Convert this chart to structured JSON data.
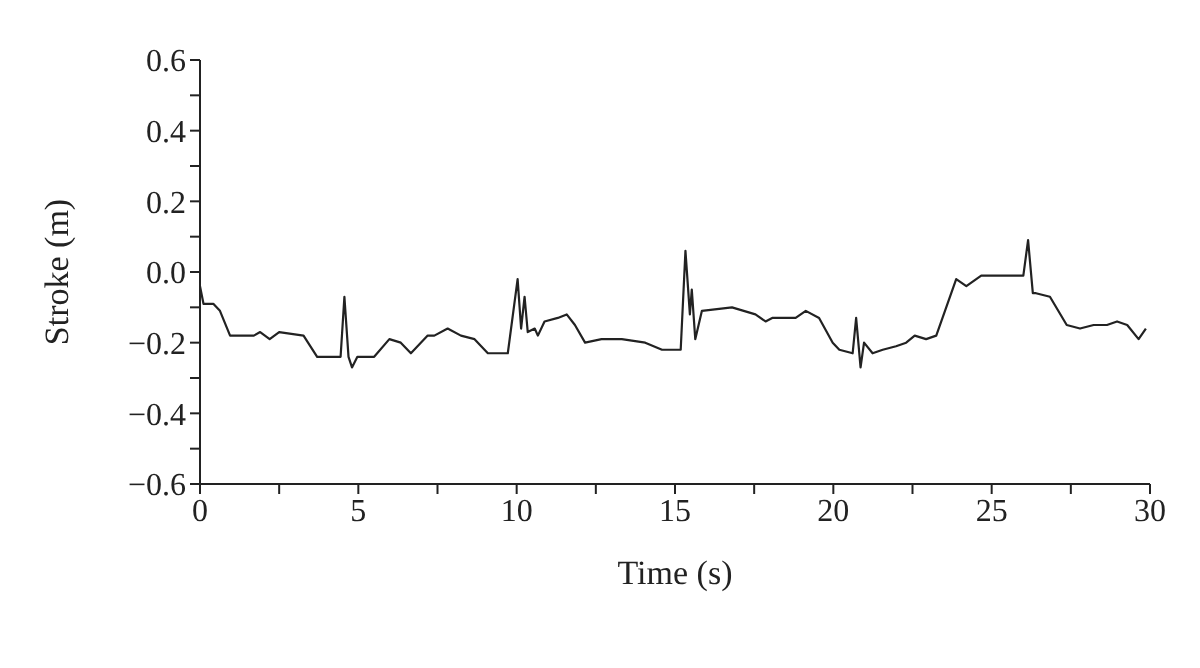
{
  "chart_data": {
    "type": "line",
    "xlabel": "Time (s)",
    "ylabel": "Stroke (m)",
    "x": [
      0,
      0.11,
      0.42,
      0.63,
      0.95,
      1.7,
      1.9,
      2.2,
      2.5,
      3.27,
      3.7,
      4.44,
      4.56,
      4.69,
      4.8,
      4.97,
      5.5,
      5.98,
      6.34,
      6.66,
      7.19,
      7.4,
      7.82,
      8.24,
      8.67,
      9.09,
      9.72,
      10.03,
      10.14,
      10.25,
      10.35,
      10.57,
      10.67,
      10.88,
      11.3,
      11.58,
      11.84,
      12.16,
      12.68,
      13.32,
      14.06,
      14.59,
      15.18,
      15.33,
      15.47,
      15.53,
      15.64,
      15.85,
      16.8,
      17.54,
      17.86,
      18.07,
      18.81,
      19.13,
      19.55,
      19.98,
      20.19,
      20.61,
      20.72,
      20.86,
      20.97,
      21.24,
      21.56,
      21.98,
      22.3,
      22.57,
      22.93,
      23.25,
      23.88,
      24.2,
      24.67,
      25.15,
      26.0,
      26.15,
      26.3,
      26.4,
      26.84,
      27.37,
      27.79,
      28.22,
      28.64,
      28.96,
      29.28,
      29.64,
      29.87
    ],
    "series": [
      {
        "color": "#222222",
        "values": [
          -0.04,
          -0.09,
          -0.09,
          -0.11,
          -0.18,
          -0.18,
          -0.17,
          -0.19,
          -0.17,
          -0.18,
          -0.24,
          -0.24,
          -0.07,
          -0.24,
          -0.27,
          -0.24,
          -0.24,
          -0.19,
          -0.2,
          -0.23,
          -0.18,
          -0.18,
          -0.16,
          -0.18,
          -0.19,
          -0.23,
          -0.23,
          -0.02,
          -0.16,
          -0.07,
          -0.17,
          -0.16,
          -0.18,
          -0.14,
          -0.13,
          -0.12,
          -0.15,
          -0.2,
          -0.19,
          -0.19,
          -0.2,
          -0.22,
          -0.22,
          0.06,
          -0.12,
          -0.05,
          -0.19,
          -0.11,
          -0.1,
          -0.12,
          -0.14,
          -0.13,
          -0.13,
          -0.11,
          -0.13,
          -0.2,
          -0.22,
          -0.23,
          -0.13,
          -0.27,
          -0.2,
          -0.23,
          -0.22,
          -0.21,
          -0.2,
          -0.18,
          -0.19,
          -0.18,
          -0.02,
          -0.04,
          -0.01,
          -0.01,
          -0.01,
          0.09,
          -0.06,
          -0.06,
          -0.07,
          -0.15,
          -0.16,
          -0.15,
          -0.15,
          -0.14,
          -0.15,
          -0.19,
          -0.16
        ]
      }
    ],
    "xlim": [
      0,
      30
    ],
    "ylim": [
      -0.6,
      0.6
    ],
    "xticks": [
      0,
      {
        "value": 2.5,
        "label": null
      },
      5,
      {
        "value": 7.5,
        "label": null
      },
      10,
      {
        "value": 12.5,
        "label": null
      },
      15,
      {
        "value": 17.5,
        "label": null
      },
      20,
      {
        "value": 22.5,
        "label": null
      },
      25,
      {
        "value": 27.5,
        "label": null
      },
      30
    ],
    "yticks": [
      {
        "value": -0.6,
        "label": "−0.6"
      },
      {
        "value": -0.5,
        "label": null
      },
      {
        "value": -0.4,
        "label": "−0.4"
      },
      {
        "value": -0.3,
        "label": null
      },
      {
        "value": -0.2,
        "label": "−0.2"
      },
      {
        "value": -0.1,
        "label": null
      },
      {
        "value": 0,
        "label": "0.0"
      },
      {
        "value": 0.1,
        "label": null
      },
      {
        "value": 0.2,
        "label": "0.2"
      },
      {
        "value": 0.3,
        "label": null
      },
      {
        "value": 0.4,
        "label": "0.4"
      },
      {
        "value": 0.5,
        "label": null
      },
      {
        "value": 0.6,
        "label": "0.6"
      }
    ],
    "grid": false,
    "legend": false,
    "marker": "none",
    "line_style": "solid"
  }
}
